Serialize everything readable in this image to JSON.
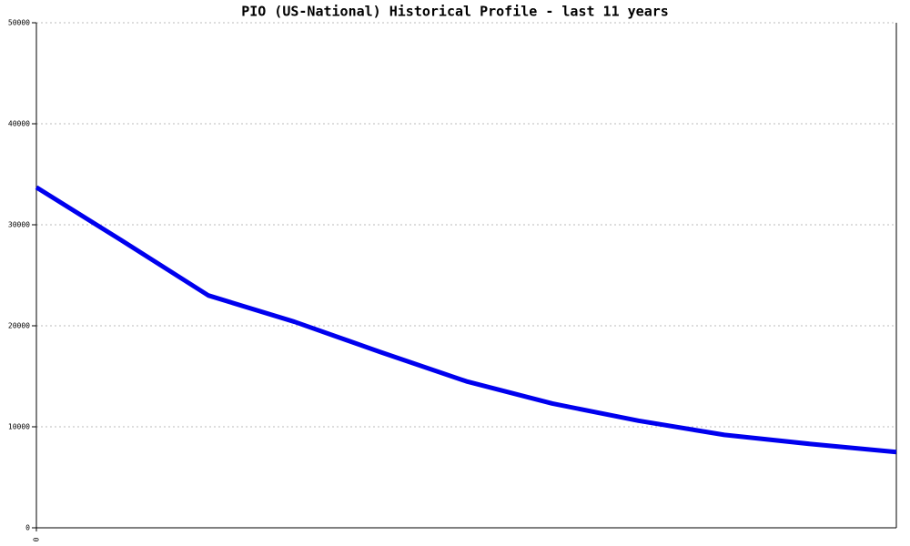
{
  "chart_data": {
    "type": "line",
    "title": "PIO (US-National) Historical Profile - last 11 years",
    "x": [
      0,
      1,
      2,
      3,
      4,
      5,
      6,
      7,
      8,
      9,
      10
    ],
    "series": [
      {
        "color": "#0000ee",
        "values": [
          33700,
          28400,
          23000,
          20400,
          17400,
          14500,
          12300,
          10600,
          9200,
          8300,
          7500
        ]
      }
    ],
    "xlim": [
      0,
      10
    ],
    "xticks": [
      0
    ],
    "ylim": [
      0,
      50000
    ],
    "yticks": [
      0,
      10000,
      20000,
      30000,
      40000,
      50000
    ],
    "grid": true
  }
}
